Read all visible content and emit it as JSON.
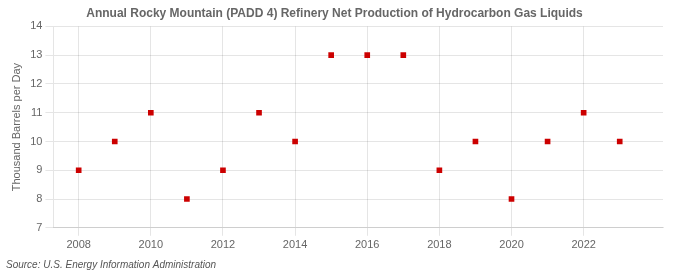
{
  "chart_data": {
    "type": "scatter",
    "title": "Annual Rocky Mountain (PADD 4) Refinery Net Production of Hydrocarbon Gas Liquids",
    "ylabel": "Thousand Barrels per Day",
    "annotations": [
      "Source: U.S. Energy Information Administration"
    ],
    "x": [
      2008,
      2009,
      2010,
      2011,
      2012,
      2013,
      2014,
      2015,
      2016,
      2017,
      2018,
      2019,
      2020,
      2021,
      2022,
      2023
    ],
    "values": [
      9,
      10,
      11,
      8,
      9,
      11,
      10,
      13,
      13,
      13,
      9,
      10,
      8,
      10,
      11,
      10
    ],
    "color": "#cc0000",
    "marker": "square",
    "xlim": [
      2007.3,
      2024.2
    ],
    "xticks": [
      2008,
      2010,
      2012,
      2014,
      2016,
      2018,
      2020,
      2022
    ],
    "ylim": [
      7,
      14
    ],
    "yticks": [
      7,
      8,
      9,
      10,
      11,
      12,
      13,
      14
    ],
    "grid": true
  }
}
